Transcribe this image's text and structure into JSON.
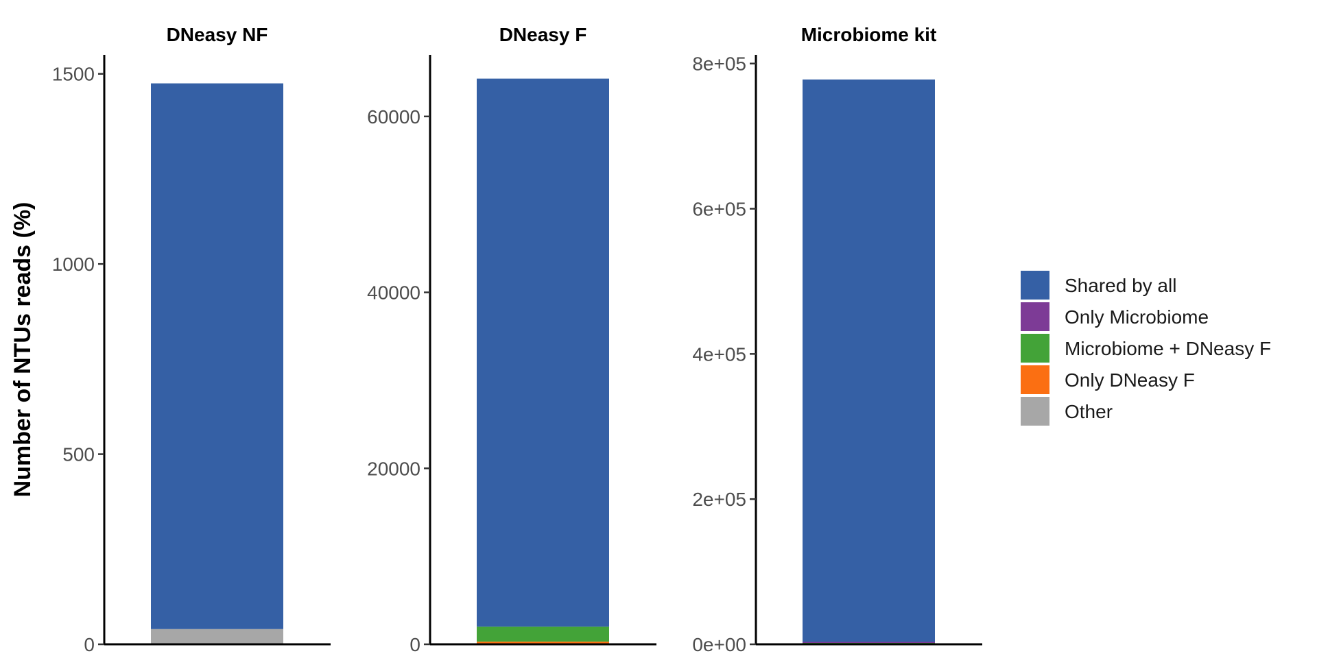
{
  "chart_data": {
    "type": "bar",
    "stacked": true,
    "ylabel": "Number of NTUs reads (%)",
    "xlabel": "",
    "grid": false,
    "legend_position": "right",
    "legend": [
      {
        "name": "Shared by all",
        "color": "#3560A5"
      },
      {
        "name": "Only Microbiome",
        "color": "#7D3B96"
      },
      {
        "name": "Microbiome + DNeasy F",
        "color": "#43A338"
      },
      {
        "name": "Only DNeasy F",
        "color": "#FB6F12"
      },
      {
        "name": "Other",
        "color": "#A7A7A7"
      }
    ],
    "panels": [
      {
        "title": "DNeasy NF",
        "ylim": [
          0,
          1550
        ],
        "ticks": [
          0,
          500,
          1000,
          1500
        ],
        "tick_labels": [
          "0",
          "500",
          "1000",
          "1500"
        ],
        "segments": [
          {
            "name": "Other",
            "value": 40
          },
          {
            "name": "Only DNeasy F",
            "value": 0
          },
          {
            "name": "Microbiome + DNeasy F",
            "value": 0
          },
          {
            "name": "Only Microbiome",
            "value": 0
          },
          {
            "name": "Shared by all",
            "value": 1435
          }
        ]
      },
      {
        "title": "DNeasy F",
        "ylim": [
          0,
          67000
        ],
        "ticks": [
          0,
          20000,
          40000,
          60000
        ],
        "tick_labels": [
          "0",
          "20000",
          "40000",
          "60000"
        ],
        "segments": [
          {
            "name": "Other",
            "value": 100
          },
          {
            "name": "Only DNeasy F",
            "value": 200
          },
          {
            "name": "Microbiome + DNeasy F",
            "value": 1700
          },
          {
            "name": "Only Microbiome",
            "value": 0
          },
          {
            "name": "Shared by all",
            "value": 62300
          }
        ]
      },
      {
        "title": "Microbiome kit",
        "ylim": [
          0,
          812000
        ],
        "ticks": [
          0,
          200000,
          400000,
          600000,
          800000
        ],
        "tick_labels": [
          "0e+00",
          "2e+05",
          "4e+05",
          "6e+05",
          "8e+05"
        ],
        "segments": [
          {
            "name": "Other",
            "value": 300
          },
          {
            "name": "Only DNeasy F",
            "value": 0
          },
          {
            "name": "Microbiome + DNeasy F",
            "value": 2500
          },
          {
            "name": "Only Microbiome",
            "value": 500
          },
          {
            "name": "Shared by all",
            "value": 774700
          }
        ]
      }
    ]
  }
}
